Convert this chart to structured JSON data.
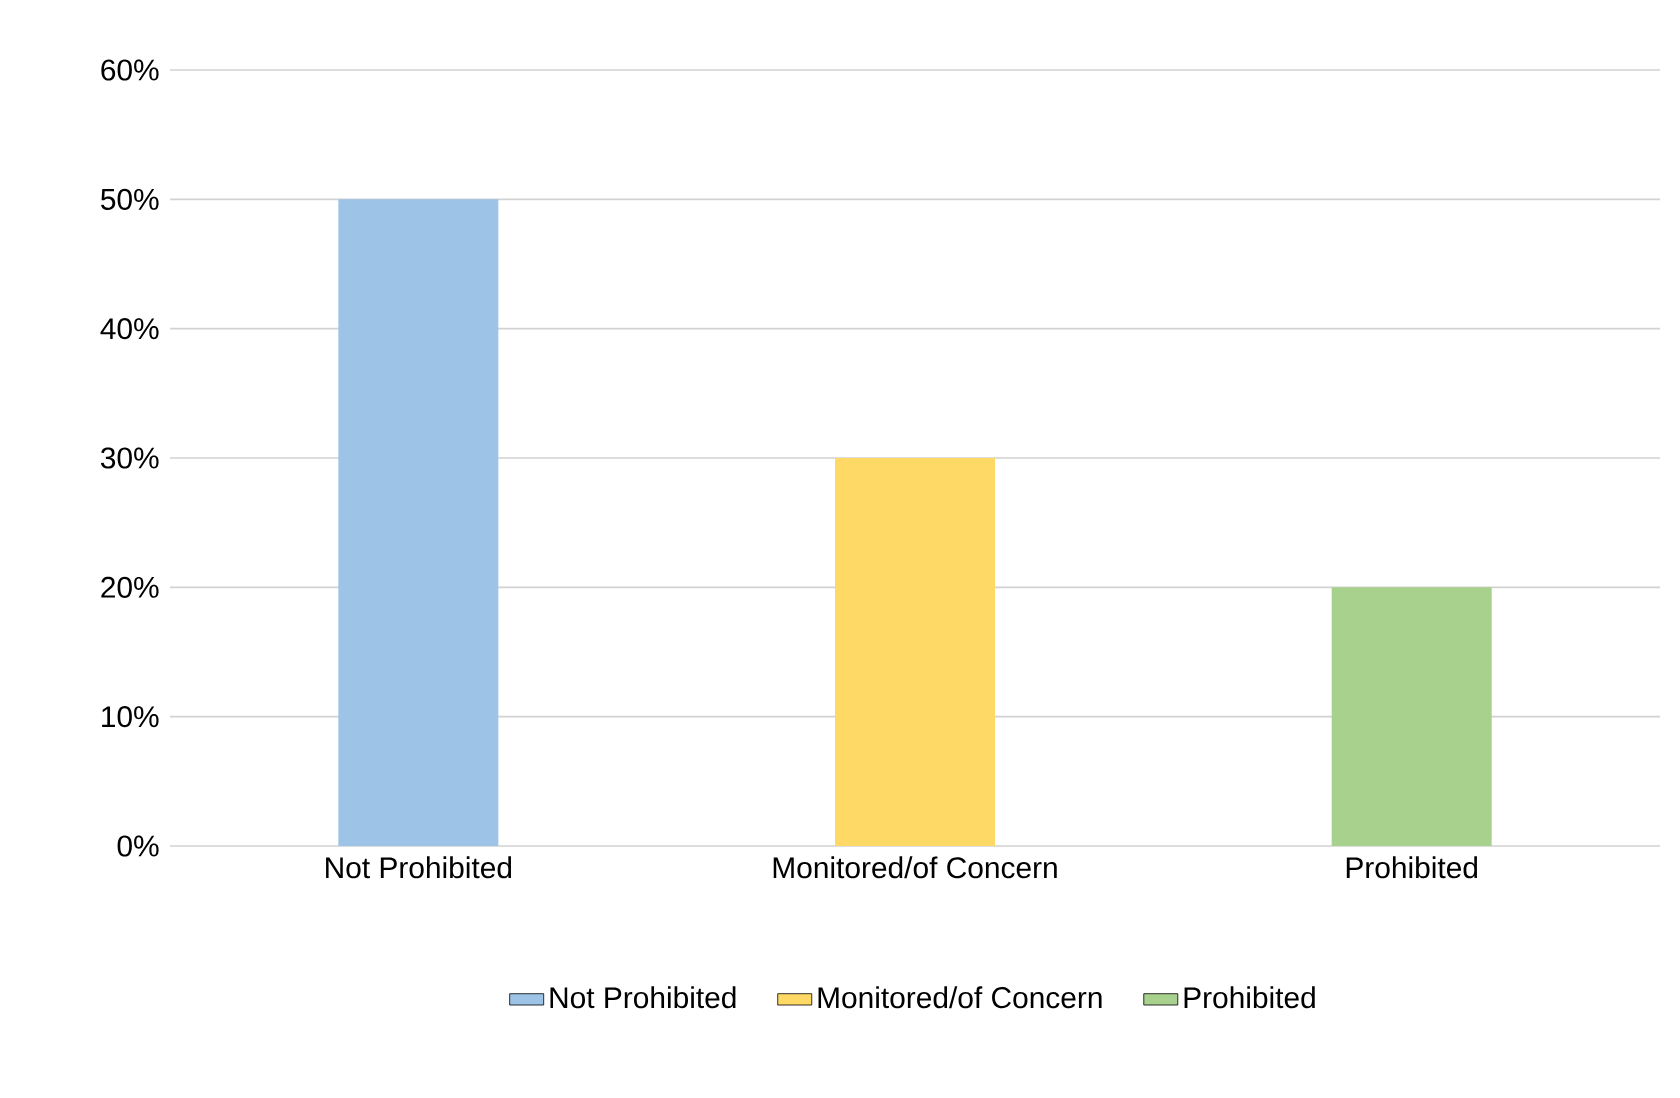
{
  "chart_data": {
    "type": "bar",
    "categories": [
      "Not Prohibited",
      "Monitored/of Concern",
      "Prohibited"
    ],
    "series": [
      {
        "name": "Not Prohibited",
        "color": "#9dc3e6",
        "values": [
          50,
          null,
          null
        ]
      },
      {
        "name": "Monitored/of Concern",
        "color": "#ffd966",
        "values": [
          null,
          30,
          null
        ]
      },
      {
        "name": "Prohibited",
        "color": "#a9d18e",
        "values": [
          null,
          null,
          20
        ]
      }
    ],
    "ylim": [
      0,
      60
    ],
    "yticks": [
      {
        "value": 0,
        "label": "0%"
      },
      {
        "value": 10,
        "label": "10%"
      },
      {
        "value": 20,
        "label": "20%"
      },
      {
        "value": 30,
        "label": "30%"
      },
      {
        "value": 40,
        "label": "40%"
      },
      {
        "value": 50,
        "label": "50%"
      },
      {
        "value": 60,
        "label": "60%"
      }
    ],
    "grid": "y",
    "legend": "bottom"
  }
}
